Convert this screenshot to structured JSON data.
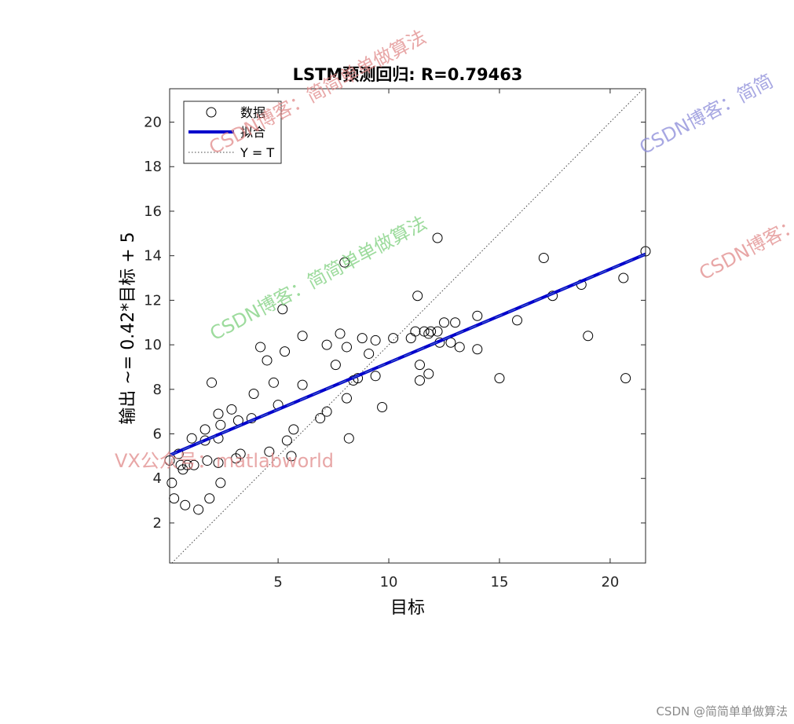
{
  "chart_data": {
    "type": "scatter",
    "title": "LSTM预测回归: R=0.79463",
    "xlabel": "目标",
    "ylabel": "输出 ~= 0.42*目标 + 5",
    "xlim": [
      0.1,
      21.6
    ],
    "ylim": [
      0.2,
      21.5
    ],
    "xticks": [
      5,
      10,
      15,
      20
    ],
    "yticks": [
      2,
      4,
      6,
      8,
      10,
      12,
      14,
      16,
      18,
      20
    ],
    "legend_position": "top-left",
    "legend": [
      "数据",
      "拟合",
      "Y = T"
    ],
    "grid": false,
    "fit": {
      "slope": 0.42,
      "intercept": 5,
      "x_range": [
        0.1,
        21.6
      ]
    },
    "series": [
      {
        "name": "数据",
        "marker": "circle",
        "points": [
          [
            0.1,
            4.8
          ],
          [
            0.2,
            3.8
          ],
          [
            0.3,
            3.1
          ],
          [
            0.5,
            5.1
          ],
          [
            0.7,
            4.4
          ],
          [
            0.6,
            4.6
          ],
          [
            0.8,
            2.8
          ],
          [
            0.9,
            4.6
          ],
          [
            1.1,
            5.8
          ],
          [
            1.2,
            4.6
          ],
          [
            1.4,
            2.6
          ],
          [
            1.7,
            6.2
          ],
          [
            1.7,
            5.7
          ],
          [
            1.8,
            4.8
          ],
          [
            1.9,
            3.1
          ],
          [
            2.0,
            8.3
          ],
          [
            2.3,
            6.9
          ],
          [
            2.3,
            5.8
          ],
          [
            2.3,
            4.7
          ],
          [
            2.4,
            6.4
          ],
          [
            2.4,
            3.8
          ],
          [
            2.9,
            7.1
          ],
          [
            3.1,
            4.9
          ],
          [
            3.2,
            6.6
          ],
          [
            3.3,
            5.1
          ],
          [
            3.8,
            6.7
          ],
          [
            3.9,
            7.8
          ],
          [
            4.2,
            9.9
          ],
          [
            4.5,
            9.3
          ],
          [
            4.6,
            5.2
          ],
          [
            4.8,
            8.3
          ],
          [
            5.0,
            7.3
          ],
          [
            5.2,
            11.6
          ],
          [
            5.3,
            9.7
          ],
          [
            5.4,
            5.7
          ],
          [
            5.6,
            5.0
          ],
          [
            5.7,
            6.2
          ],
          [
            6.1,
            10.4
          ],
          [
            6.1,
            8.2
          ],
          [
            6.9,
            6.7
          ],
          [
            7.2,
            10.0
          ],
          [
            7.2,
            7.0
          ],
          [
            7.6,
            9.1
          ],
          [
            7.8,
            10.5
          ],
          [
            8.0,
            13.7
          ],
          [
            8.1,
            9.9
          ],
          [
            8.1,
            7.6
          ],
          [
            8.2,
            5.8
          ],
          [
            8.4,
            8.4
          ],
          [
            8.6,
            8.5
          ],
          [
            8.8,
            10.3
          ],
          [
            9.1,
            9.6
          ],
          [
            9.4,
            10.2
          ],
          [
            9.4,
            8.6
          ],
          [
            9.7,
            7.2
          ],
          [
            10.2,
            10.3
          ],
          [
            11.0,
            10.3
          ],
          [
            11.2,
            10.6
          ],
          [
            11.3,
            12.2
          ],
          [
            11.4,
            9.1
          ],
          [
            11.4,
            8.4
          ],
          [
            11.6,
            10.6
          ],
          [
            11.8,
            8.7
          ],
          [
            11.8,
            10.5
          ],
          [
            11.9,
            10.6
          ],
          [
            12.2,
            14.8
          ],
          [
            12.2,
            10.6
          ],
          [
            12.3,
            10.1
          ],
          [
            12.5,
            11.0
          ],
          [
            12.8,
            10.1
          ],
          [
            13.0,
            11.0
          ],
          [
            13.2,
            9.9
          ],
          [
            14.0,
            11.3
          ],
          [
            14.0,
            9.8
          ],
          [
            15.0,
            8.5
          ],
          [
            15.8,
            11.1
          ],
          [
            17.0,
            13.9
          ],
          [
            17.4,
            12.2
          ],
          [
            18.7,
            12.7
          ],
          [
            19.0,
            10.4
          ],
          [
            20.6,
            13.0
          ],
          [
            20.7,
            8.5
          ],
          [
            21.6,
            14.2
          ]
        ]
      },
      {
        "name": "拟合",
        "line": "solid",
        "color": "#0000cc"
      },
      {
        "name": "Y = T",
        "line": "dotted",
        "color": "#444444"
      }
    ]
  },
  "watermarks": {
    "csdn_blog_1": "CSDN博客：简简单单做算法",
    "csdn_blog_2": "CSDN博客：简简单单做算法",
    "csdn_blog_3": "CSDN博客：简简",
    "csdn_blog_4": "CSDN博客：简简单单做算法",
    "vx": "VX公众号：matlabworld"
  },
  "footer": "CSDN @简简单单做算法"
}
